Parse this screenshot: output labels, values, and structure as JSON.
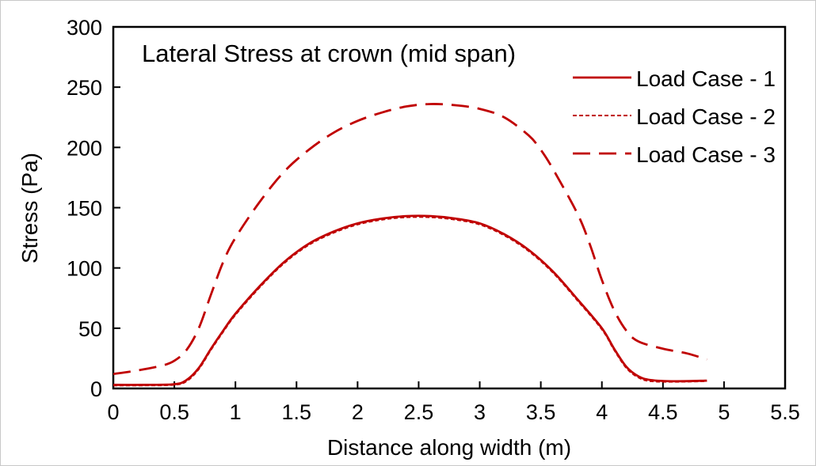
{
  "chart_data": {
    "type": "line",
    "title": "Lateral Stress at crown (mid span)",
    "xlabel": "Distance along width (m)",
    "ylabel": "Stress (Pa)",
    "xlim": [
      0,
      5.5
    ],
    "ylim": [
      0,
      300
    ],
    "xticks": [
      "0",
      "0.5",
      "1",
      "1.5",
      "2",
      "2.5",
      "3",
      "3.5",
      "4",
      "4.5",
      "5",
      "5.5"
    ],
    "yticks": [
      "0",
      "50",
      "100",
      "150",
      "200",
      "250",
      "300"
    ],
    "grid": false,
    "legend": "top-right",
    "line_color": "#c00000",
    "series": [
      {
        "name": "Load Case - 1",
        "style": "solid",
        "x": [
          0,
          0.25,
          0.5,
          0.6,
          0.7,
          0.8,
          0.9,
          1.0,
          1.2,
          1.4,
          1.6,
          1.8,
          2.0,
          2.2,
          2.4,
          2.6,
          2.8,
          3.0,
          3.2,
          3.4,
          3.6,
          3.8,
          4.0,
          4.1,
          4.2,
          4.3,
          4.4,
          4.6,
          4.86
        ],
        "y": [
          3,
          3,
          3.5,
          7,
          17,
          33,
          48,
          62,
          85,
          105,
          120,
          130,
          137,
          141,
          143,
          143,
          141,
          137,
          128,
          115,
          97,
          74,
          50,
          33,
          18,
          10,
          7,
          6,
          6.5
        ]
      },
      {
        "name": "Load Case - 2",
        "style": "dotted",
        "x": [
          0,
          0.25,
          0.5,
          0.6,
          0.7,
          0.8,
          0.9,
          1.0,
          1.2,
          1.4,
          1.6,
          1.8,
          2.0,
          2.2,
          2.4,
          2.6,
          2.8,
          3.0,
          3.2,
          3.4,
          3.6,
          3.8,
          4.0,
          4.1,
          4.2,
          4.3,
          4.4,
          4.6,
          4.86
        ],
        "y": [
          2.5,
          2.5,
          3,
          6,
          16,
          32,
          47,
          61,
          84,
          104,
          119,
          129,
          136,
          140,
          142,
          142,
          140,
          136,
          127,
          114,
          96,
          73,
          49,
          32,
          17,
          9,
          6,
          5.5,
          6
        ]
      },
      {
        "name": "Load Case - 3",
        "style": "dashed",
        "x": [
          0,
          0.2,
          0.4,
          0.5,
          0.6,
          0.7,
          0.8,
          0.9,
          1.0,
          1.2,
          1.4,
          1.6,
          1.8,
          2.0,
          2.2,
          2.4,
          2.6,
          2.8,
          3.0,
          3.2,
          3.4,
          3.5,
          3.6,
          3.8,
          3.9,
          4.0,
          4.1,
          4.2,
          4.3,
          4.5,
          4.7,
          4.86
        ],
        "y": [
          12,
          15,
          19,
          23,
          32,
          50,
          78,
          105,
          125,
          155,
          180,
          198,
          212,
          222,
          229,
          234,
          236,
          235,
          232,
          225,
          210,
          198,
          182,
          145,
          120,
          90,
          65,
          48,
          39,
          33,
          29,
          24
        ]
      }
    ]
  }
}
